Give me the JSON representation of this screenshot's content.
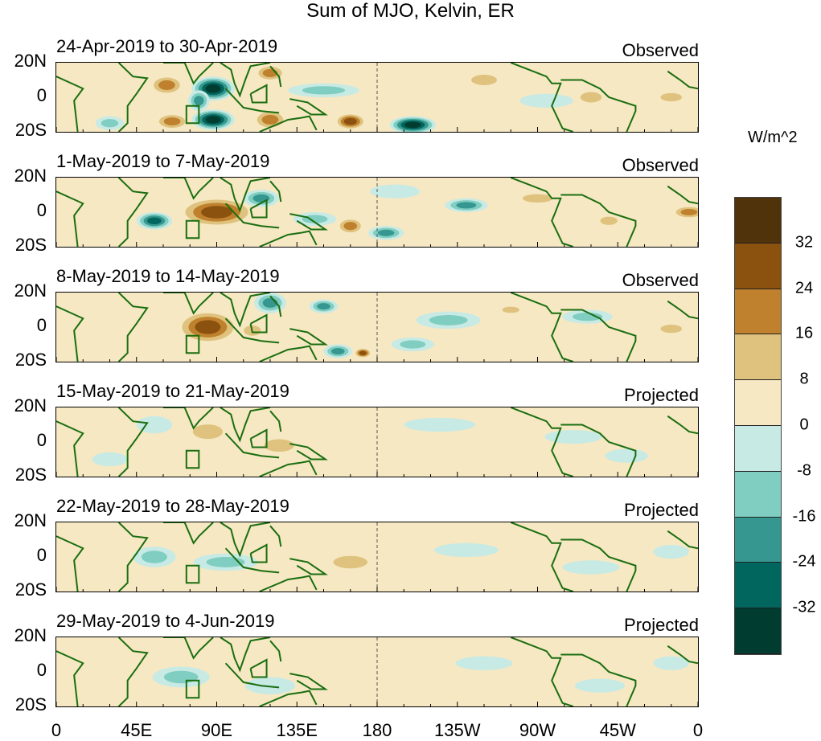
{
  "chart_data": {
    "type": "heatmap",
    "title": "Sum of MJO, Kelvin, ER",
    "colorbar": {
      "unit": "W/m^2",
      "ticks": [
        "32",
        "24",
        "16",
        "8",
        "0",
        "-8",
        "-16",
        "-24",
        "-32"
      ],
      "colors": [
        "#50330a",
        "#8b510e",
        "#bf812d",
        "#dfc27d",
        "#f6e8c3",
        "#c7eae5",
        "#80cdc1",
        "#35978f",
        "#01665e",
        "#003c30"
      ]
    },
    "lat_labels": [
      "20N",
      "0",
      "20S"
    ],
    "lon_labels": [
      "0",
      "45E",
      "90E",
      "135E",
      "180",
      "135W",
      "90W",
      "45W",
      "0"
    ],
    "lon_range": [
      0,
      360
    ],
    "lat_range": [
      -20,
      20
    ],
    "panels": [
      {
        "period": "24-Apr-2019 to 30-Apr-2019",
        "type": "Observed",
        "anomalies": [
          [
            62,
            7,
            10,
            6,
            24
          ],
          [
            88,
            5,
            12,
            7,
            -34
          ],
          [
            88,
            -13,
            12,
            6,
            -34
          ],
          [
            65,
            -14,
            10,
            5,
            20
          ],
          [
            120,
            14,
            9,
            5,
            22
          ],
          [
            120,
            -13,
            10,
            6,
            18
          ],
          [
            165,
            -14,
            9,
            5,
            26
          ],
          [
            200,
            -16,
            13,
            5,
            -34
          ],
          [
            150,
            4,
            20,
            4,
            -12
          ],
          [
            30,
            -15,
            8,
            4,
            -14
          ],
          [
            240,
            10,
            12,
            5,
            14
          ],
          [
            300,
            0,
            10,
            5,
            12
          ],
          [
            345,
            0,
            10,
            4,
            14
          ],
          [
            275,
            -2,
            15,
            4,
            -8
          ],
          [
            80,
            -2,
            6,
            6,
            -18
          ]
        ]
      },
      {
        "period": "1-May-2019 to 7-May-2019",
        "type": "Observed",
        "anomalies": [
          [
            90,
            0,
            22,
            9,
            30
          ],
          [
            55,
            -5,
            10,
            5,
            -26
          ],
          [
            115,
            8,
            10,
            5,
            -18
          ],
          [
            165,
            -8,
            8,
            5,
            24
          ],
          [
            145,
            -4,
            12,
            4,
            -14
          ],
          [
            185,
            -12,
            10,
            4,
            -20
          ],
          [
            230,
            4,
            12,
            4,
            -18
          ],
          [
            270,
            8,
            14,
            4,
            14
          ],
          [
            355,
            0,
            10,
            4,
            18
          ],
          [
            310,
            -5,
            8,
            4,
            10
          ],
          [
            190,
            12,
            14,
            4,
            -8
          ]
        ]
      },
      {
        "period": "8-May-2019 to 14-May-2019",
        "type": "Observed",
        "anomalies": [
          [
            85,
            0,
            18,
            10,
            30
          ],
          [
            120,
            14,
            9,
            6,
            -22
          ],
          [
            150,
            12,
            8,
            4,
            -20
          ],
          [
            158,
            -14,
            8,
            4,
            -24
          ],
          [
            172,
            -15,
            5,
            3,
            26
          ],
          [
            220,
            4,
            18,
            5,
            -16
          ],
          [
            255,
            10,
            8,
            3,
            14
          ],
          [
            298,
            6,
            14,
            4,
            -10
          ],
          [
            345,
            -1,
            10,
            4,
            12
          ],
          [
            110,
            -2,
            8,
            5,
            14
          ],
          [
            200,
            -10,
            12,
            4,
            -10
          ]
        ]
      },
      {
        "period": "15-May-2019 to 21-May-2019",
        "type": "Projected",
        "anomalies": [
          [
            85,
            6,
            14,
            7,
            10
          ],
          [
            125,
            -2,
            14,
            6,
            12
          ],
          [
            55,
            10,
            10,
            5,
            -6
          ],
          [
            215,
            10,
            20,
            4,
            -6
          ],
          [
            290,
            3,
            16,
            4,
            -6
          ],
          [
            320,
            -8,
            12,
            4,
            -5
          ],
          [
            30,
            -10,
            10,
            4,
            -5
          ],
          [
            165,
            -10,
            12,
            5,
            6
          ]
        ]
      },
      {
        "period": "22-May-2019 to 28-May-2019",
        "type": "Projected",
        "anomalies": [
          [
            55,
            0,
            12,
            6,
            -12
          ],
          [
            95,
            -3,
            18,
            5,
            -10
          ],
          [
            165,
            -3,
            16,
            6,
            12
          ],
          [
            130,
            8,
            10,
            5,
            6
          ],
          [
            230,
            4,
            18,
            4,
            -6
          ],
          [
            300,
            -6,
            16,
            4,
            -6
          ],
          [
            345,
            3,
            10,
            4,
            -6
          ],
          [
            25,
            8,
            10,
            4,
            6
          ]
        ]
      },
      {
        "period": "29-May-2019 to 4-Jun-2019",
        "type": "Projected",
        "anomalies": [
          [
            70,
            -3,
            16,
            6,
            -10
          ],
          [
            120,
            -8,
            14,
            5,
            -8
          ],
          [
            180,
            -10,
            14,
            6,
            8
          ],
          [
            140,
            10,
            12,
            5,
            6
          ],
          [
            240,
            5,
            16,
            4,
            -6
          ],
          [
            305,
            -8,
            14,
            4,
            -5
          ],
          [
            345,
            5,
            10,
            4,
            -5
          ],
          [
            25,
            -10,
            10,
            4,
            6
          ]
        ]
      }
    ]
  }
}
